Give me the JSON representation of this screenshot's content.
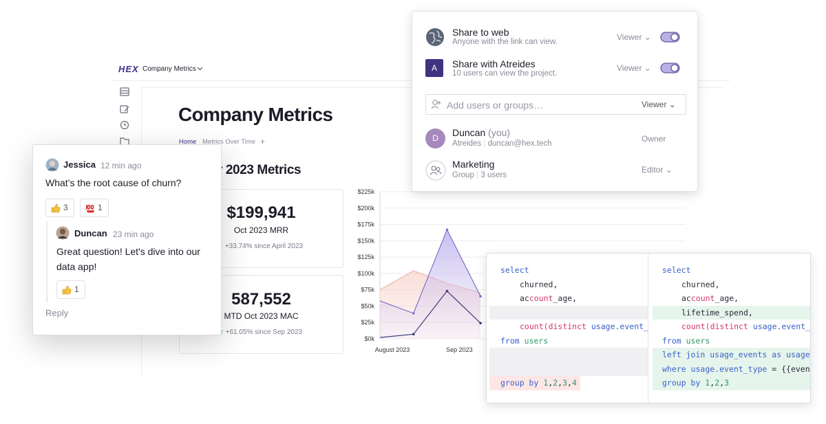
{
  "header": {
    "logo": "HEX",
    "project": "Company Metrics"
  },
  "page": {
    "title": "Company Metrics",
    "tabs": [
      "Home",
      "Metrics Over Time",
      "+"
    ],
    "section": "r 2023 Metrics"
  },
  "kpis": [
    {
      "value": "$199,941",
      "label": "Oct 2023 MRR",
      "change": "+33.74% since April 2023"
    },
    {
      "value": "587,552",
      "label": "MTD Oct 2023 MAC",
      "change": "+61.05% since Sep 2023"
    }
  ],
  "chart_data": {
    "type": "line",
    "categories": [
      "August 2023",
      null,
      "Sep 2023",
      null
    ],
    "series": [
      {
        "name": "Pink",
        "color": "#f2b8ae",
        "fill": true,
        "values": [
          75000,
          104000,
          85000,
          70000
        ]
      },
      {
        "name": "Purple",
        "color": "#7d6fc8",
        "fill": true,
        "values": [
          58000,
          39000,
          167000,
          65000
        ]
      },
      {
        "name": "Dark",
        "color": "#3e3a78",
        "fill": false,
        "values": [
          2000,
          7000,
          73000,
          24000
        ]
      }
    ],
    "ylim": [
      0,
      225000
    ],
    "yticks": [
      {
        "value": 0,
        "label": "$0k"
      },
      {
        "value": 25000,
        "label": "$25k"
      },
      {
        "value": 50000,
        "label": "$50k"
      },
      {
        "value": 75000,
        "label": "$75k"
      },
      {
        "value": 100000,
        "label": "$100k"
      },
      {
        "value": 125000,
        "label": "$125k"
      },
      {
        "value": 150000,
        "label": "$150k"
      },
      {
        "value": 175000,
        "label": "$175k"
      },
      {
        "value": 200000,
        "label": "$200k"
      },
      {
        "value": 225000,
        "label": "$225k"
      }
    ],
    "grid": true
  },
  "share": {
    "rows": [
      {
        "title": "Share to web",
        "subtitle": "Anyone with the link can view.",
        "role": "Viewer"
      },
      {
        "avatar": "A",
        "title": "Share with Atreides",
        "subtitle": "10 users can view the project.",
        "role": "Viewer"
      }
    ],
    "input": {
      "placeholder": "Add users or groups…",
      "role": "Viewer"
    },
    "members": [
      {
        "avatar": "D",
        "name": "Duncan",
        "note": "(you)",
        "detail": [
          "Atreides",
          "duncan@hex.tech"
        ],
        "role": "Owner"
      },
      {
        "name": "Marketing",
        "detail": [
          "Group",
          "3 users"
        ],
        "role": "Editor"
      }
    ]
  },
  "comment": {
    "author": "Jessica",
    "time": "12 min ago",
    "text": "What’s the root cause of churn?",
    "reactions": [
      {
        "count": 3
      },
      {
        "count": 1
      }
    ],
    "reply": {
      "author": "Duncan",
      "time": "23 min ago",
      "text": "Great question! Let's dive into our data app!",
      "reactions": [
        {
          "count": 1
        }
      ]
    },
    "action": "Reply"
  },
  "diff": {
    "left": [
      "select",
      "churned,",
      "account_age,",
      null,
      "count(distinct usage.event_",
      "from users",
      null,
      null,
      "group by 1,2,3,4"
    ],
    "right": [
      "select",
      "churned,",
      "account_age,",
      "lifetime_spend,",
      "count(distinct usage.event_",
      "from users",
      "left join usage_events as usage",
      "where usage.event_type = {{even",
      "group by 1,2,3"
    ]
  }
}
